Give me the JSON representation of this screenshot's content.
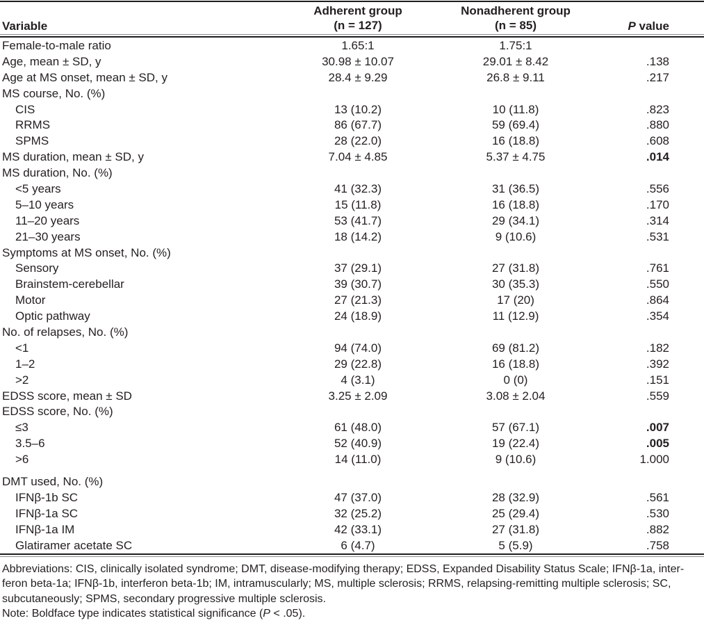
{
  "header": {
    "variable": "Variable",
    "adherent_line1": "Adherent group",
    "adherent_line2": "(n = 127)",
    "nonadherent_line1": "Nonadherent group",
    "nonadherent_line2": "(n = 85)",
    "p_italic": "P",
    "p_rest": " value"
  },
  "rows": [
    {
      "label": "Female-to-male ratio",
      "indent": false,
      "adherent": "1.65:1",
      "nonadherent": "1.75:1",
      "p": "",
      "p_bold": false
    },
    {
      "label": "Age, mean ± SD, y",
      "indent": false,
      "adherent": "30.98 ± 10.07",
      "nonadherent": "29.01 ± 8.42",
      "p": ".138",
      "p_bold": false
    },
    {
      "label": "Age at MS onset, mean ± SD, y",
      "indent": false,
      "adherent": "28.4 ± 9.29",
      "nonadherent": "26.8 ± 9.11",
      "p": ".217",
      "p_bold": false
    },
    {
      "label": "MS course, No. (%)",
      "indent": false,
      "adherent": "",
      "nonadherent": "",
      "p": "",
      "p_bold": false
    },
    {
      "label": "CIS",
      "indent": true,
      "adherent": "13 (10.2)",
      "nonadherent": "10 (11.8)",
      "p": ".823",
      "p_bold": false
    },
    {
      "label": "RRMS",
      "indent": true,
      "adherent": "86 (67.7)",
      "nonadherent": "59 (69.4)",
      "p": ".880",
      "p_bold": false
    },
    {
      "label": "SPMS",
      "indent": true,
      "adherent": "28 (22.0)",
      "nonadherent": "16 (18.8)",
      "p": ".608",
      "p_bold": false
    },
    {
      "label": "MS duration, mean ± SD, y",
      "indent": false,
      "adherent": "7.04 ± 4.85",
      "nonadherent": "5.37 ± 4.75",
      "p": ".014",
      "p_bold": true
    },
    {
      "label": "MS duration, No. (%)",
      "indent": false,
      "adherent": "",
      "nonadherent": "",
      "p": "",
      "p_bold": false
    },
    {
      "label": "<5 years",
      "indent": true,
      "adherent": "41 (32.3)",
      "nonadherent": "31 (36.5)",
      "p": ".556",
      "p_bold": false
    },
    {
      "label": "5–10 years",
      "indent": true,
      "adherent": "15 (11.8)",
      "nonadherent": "16 (18.8)",
      "p": ".170",
      "p_bold": false
    },
    {
      "label": "11–20 years",
      "indent": true,
      "adherent": "53 (41.7)",
      "nonadherent": "29 (34.1)",
      "p": ".314",
      "p_bold": false
    },
    {
      "label": "21–30 years",
      "indent": true,
      "adherent": "18 (14.2)",
      "nonadherent": "9 (10.6)",
      "p": ".531",
      "p_bold": false
    },
    {
      "label": "Symptoms at MS onset, No. (%)",
      "indent": false,
      "adherent": "",
      "nonadherent": "",
      "p": "",
      "p_bold": false
    },
    {
      "label": "Sensory",
      "indent": true,
      "adherent": "37 (29.1)",
      "nonadherent": "27 (31.8)",
      "p": ".761",
      "p_bold": false
    },
    {
      "label": "Brainstem-cerebellar",
      "indent": true,
      "adherent": "39 (30.7)",
      "nonadherent": "30 (35.3)",
      "p": ".550",
      "p_bold": false
    },
    {
      "label": "Motor",
      "indent": true,
      "adherent": "27 (21.3)",
      "nonadherent": "17 (20)",
      "p": ".864",
      "p_bold": false
    },
    {
      "label": "Optic pathway",
      "indent": true,
      "adherent": "24 (18.9)",
      "nonadherent": "11 (12.9)",
      "p": ".354",
      "p_bold": false
    },
    {
      "label": "No. of relapses, No. (%)",
      "indent": false,
      "adherent": "",
      "nonadherent": "",
      "p": "",
      "p_bold": false
    },
    {
      "label": "<1",
      "indent": true,
      "adherent": "94 (74.0)",
      "nonadherent": "69 (81.2)",
      "p": ".182",
      "p_bold": false
    },
    {
      "label": "1–2",
      "indent": true,
      "adherent": "29 (22.8)",
      "nonadherent": "16 (18.8)",
      "p": ".392",
      "p_bold": false
    },
    {
      "label": ">2",
      "indent": true,
      "adherent": "4 (3.1)",
      "nonadherent": "0 (0)",
      "p": ".151",
      "p_bold": false
    },
    {
      "label": "EDSS score, mean ± SD",
      "indent": false,
      "adherent": "3.25 ± 2.09",
      "nonadherent": "3.08 ± 2.04",
      "p": ".559",
      "p_bold": false
    },
    {
      "label": "EDSS score, No. (%)",
      "indent": false,
      "adherent": "",
      "nonadherent": "",
      "p": "",
      "p_bold": false
    },
    {
      "label": "≤3",
      "indent": true,
      "adherent": "61 (48.0)",
      "nonadherent": "57 (67.1)",
      "p": ".007",
      "p_bold": true
    },
    {
      "label": "3.5–6",
      "indent": true,
      "adherent": "52 (40.9)",
      "nonadherent": "19 (22.4)",
      "p": ".005",
      "p_bold": true
    },
    {
      "label": ">6",
      "indent": true,
      "adherent": "14 (11.0)",
      "nonadherent": "9 (10.6)",
      "p": "1.000",
      "p_bold": false
    },
    {
      "label": "DMT used, No. (%)",
      "indent": false,
      "adherent": "",
      "nonadherent": "",
      "p": "",
      "p_bold": false,
      "section_gap": true
    },
    {
      "label": "IFNβ-1b SC",
      "indent": true,
      "adherent": "47 (37.0)",
      "nonadherent": "28 (32.9)",
      "p": ".561",
      "p_bold": false
    },
    {
      "label": "IFNβ-1a SC",
      "indent": true,
      "adherent": "32 (25.2)",
      "nonadherent": "25 (29.4)",
      "p": ".530",
      "p_bold": false
    },
    {
      "label": "IFNβ-1a IM",
      "indent": true,
      "adherent": "42 (33.1)",
      "nonadherent": "27 (31.8)",
      "p": ".882",
      "p_bold": false
    },
    {
      "label": "Glatiramer acetate SC",
      "indent": true,
      "adherent": "6 (4.7)",
      "nonadherent": "5 (5.9)",
      "p": ".758",
      "p_bold": false
    }
  ],
  "footnotes": {
    "abbrev_lines": [
      "Abbreviations: CIS, clinically isolated syndrome; DMT, disease-modifying therapy; EDSS, Expanded Disability Status Scale; IFNβ-1a, inter-",
      "feron beta-1a; IFNβ-1b, interferon beta-1b; IM, intramuscularly; MS, multiple sclerosis; RRMS, relapsing-remitting multiple sclerosis; SC,",
      "subcutaneously; SPMS, secondary progressive multiple sclerosis."
    ],
    "note_prefix": "Note: Boldface type indicates statistical significance (",
    "note_p": "P",
    "note_suffix": " < .05)."
  },
  "colors": {
    "text": "#231f20",
    "rule_dark": "#1d1d1f",
    "rule_gray": "#8d8d8f",
    "background": "#ffffff"
  }
}
